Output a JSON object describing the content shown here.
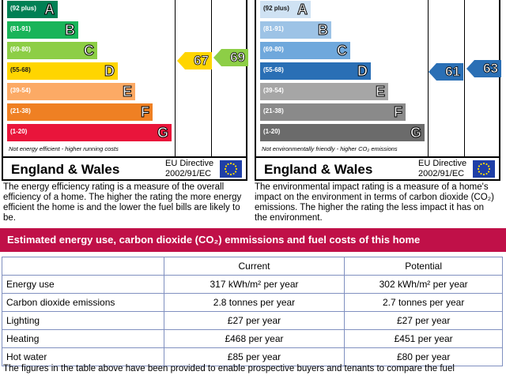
{
  "energy_efficiency": {
    "bands": [
      {
        "range": "(92 plus)",
        "letter": "A",
        "color": "#008054"
      },
      {
        "range": "(81-91)",
        "letter": "B",
        "color": "#19b459"
      },
      {
        "range": "(69-80)",
        "letter": "C",
        "color": "#8dce46"
      },
      {
        "range": "(55-68)",
        "letter": "D",
        "color": "#ffd500"
      },
      {
        "range": "(39-54)",
        "letter": "E",
        "color": "#fcaa65"
      },
      {
        "range": "(21-38)",
        "letter": "F",
        "color": "#ef8023"
      },
      {
        "range": "(1-20)",
        "letter": "G",
        "color": "#e9153b"
      }
    ],
    "note": "Not energy efficient - higher running costs",
    "current": "67",
    "current_color": "#ffd500",
    "potential": "69",
    "potential_color": "#8dce46",
    "region": "England & Wales",
    "directive_line1": "EU Directive",
    "directive_line2": "2002/91/EC",
    "description": "The energy efficiency rating is a measure of the overall efficiency of a home. The higher the rating the more energy efficient the home is and the lower the fuel bills are likely to be."
  },
  "environmental_impact": {
    "bands": [
      {
        "range": "(92 plus)",
        "letter": "A",
        "color": "#cfe2f3"
      },
      {
        "range": "(81-91)",
        "letter": "B",
        "color": "#9dc3e6"
      },
      {
        "range": "(69-80)",
        "letter": "C",
        "color": "#6fa8dc"
      },
      {
        "range": "(55-68)",
        "letter": "D",
        "color": "#2a6fb5"
      },
      {
        "range": "(39-54)",
        "letter": "E",
        "color": "#a6a6a6"
      },
      {
        "range": "(21-38)",
        "letter": "F",
        "color": "#8a8a8a"
      },
      {
        "range": "(1-20)",
        "letter": "G",
        "color": "#6b6b6b"
      }
    ],
    "note": "Not environmentally friendly - higher CO₂ emissions",
    "current": "61",
    "current_color": "#2a6fb5",
    "potential": "63",
    "potential_color": "#2a6fb5",
    "region": "England & Wales",
    "directive_line1": "EU Directive",
    "directive_line2": "2002/91/EC",
    "description": "The environmental impact rating is a measure of a home's impact on the environment in terms of carbon dioxide (CO₂) emissions. The higher the rating the less impact it has on the environment."
  },
  "costs": {
    "banner": "Estimated energy use, carbon dioxide (CO₂) emmissions and fuel costs of this home",
    "header": [
      "",
      "Current",
      "Potential"
    ],
    "rows": [
      [
        "Energy use",
        "317 kWh/m² per year",
        "302 kWh/m² per year"
      ],
      [
        "Carbon dioxide emissions",
        "2.8 tonnes per year",
        "2.7 tonnes per year"
      ],
      [
        "Lighting",
        "£27 per year",
        "£27 per year"
      ],
      [
        "Heating",
        "£468 per year",
        "£451 per year"
      ],
      [
        "Hot water",
        "£85 per year",
        "£80 per year"
      ]
    ]
  },
  "footer": "The figures in the table above have been provided to enable prospective buyers and tenants to compare the fuel"
}
